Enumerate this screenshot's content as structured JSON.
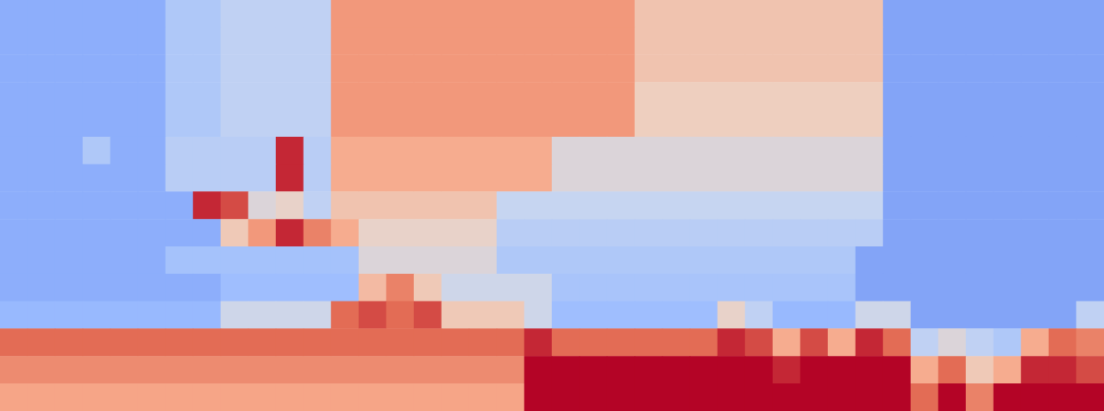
{
  "chart_data": {
    "type": "heatmap",
    "tick_labels": false,
    "zlim": [
      0,
      1
    ],
    "cells": [
      [
        0.25,
        0.25,
        0.25,
        0.25,
        0.25,
        0.25,
        0.35,
        0.35,
        0.4,
        0.4,
        0.4,
        0.4,
        0.75,
        0.75,
        0.75,
        0.75,
        0.75,
        0.75,
        0.75,
        0.75,
        0.75,
        0.75,
        0.75,
        0.62,
        0.62,
        0.62,
        0.62,
        0.62,
        0.62,
        0.62,
        0.62,
        0.62,
        0.22,
        0.22,
        0.22,
        0.22,
        0.22,
        0.22,
        0.22,
        0.22
      ],
      [
        0.25,
        0.25,
        0.25,
        0.25,
        0.25,
        0.25,
        0.35,
        0.35,
        0.4,
        0.4,
        0.4,
        0.4,
        0.75,
        0.75,
        0.75,
        0.75,
        0.75,
        0.75,
        0.75,
        0.75,
        0.75,
        0.75,
        0.75,
        0.62,
        0.62,
        0.62,
        0.62,
        0.62,
        0.62,
        0.62,
        0.62,
        0.62,
        0.22,
        0.22,
        0.22,
        0.22,
        0.22,
        0.22,
        0.22,
        0.22
      ],
      [
        0.25,
        0.25,
        0.25,
        0.25,
        0.25,
        0.25,
        0.35,
        0.35,
        0.4,
        0.4,
        0.4,
        0.4,
        0.75,
        0.75,
        0.75,
        0.75,
        0.75,
        0.75,
        0.75,
        0.75,
        0.75,
        0.75,
        0.75,
        0.62,
        0.62,
        0.62,
        0.62,
        0.62,
        0.62,
        0.62,
        0.62,
        0.62,
        0.22,
        0.22,
        0.22,
        0.22,
        0.22,
        0.22,
        0.22,
        0.22
      ],
      [
        0.25,
        0.25,
        0.25,
        0.25,
        0.25,
        0.25,
        0.35,
        0.35,
        0.4,
        0.4,
        0.4,
        0.4,
        0.75,
        0.75,
        0.75,
        0.75,
        0.75,
        0.75,
        0.75,
        0.75,
        0.75,
        0.75,
        0.75,
        0.58,
        0.58,
        0.58,
        0.58,
        0.58,
        0.58,
        0.58,
        0.58,
        0.58,
        0.22,
        0.22,
        0.22,
        0.22,
        0.22,
        0.22,
        0.22,
        0.22
      ],
      [
        0.25,
        0.25,
        0.25,
        0.25,
        0.25,
        0.25,
        0.35,
        0.35,
        0.4,
        0.4,
        0.4,
        0.4,
        0.75,
        0.75,
        0.75,
        0.75,
        0.75,
        0.75,
        0.75,
        0.75,
        0.75,
        0.75,
        0.75,
        0.58,
        0.58,
        0.58,
        0.58,
        0.58,
        0.58,
        0.58,
        0.58,
        0.58,
        0.22,
        0.22,
        0.22,
        0.22,
        0.22,
        0.22,
        0.22,
        0.22
      ],
      [
        0.25,
        0.25,
        0.25,
        0.35,
        0.25,
        0.25,
        0.38,
        0.38,
        0.38,
        0.38,
        0.95,
        0.38,
        0.7,
        0.7,
        0.7,
        0.7,
        0.7,
        0.7,
        0.7,
        0.7,
        0.5,
        0.5,
        0.5,
        0.5,
        0.5,
        0.5,
        0.5,
        0.5,
        0.5,
        0.5,
        0.5,
        0.5,
        0.22,
        0.22,
        0.22,
        0.22,
        0.22,
        0.22,
        0.22,
        0.22
      ],
      [
        0.25,
        0.25,
        0.25,
        0.25,
        0.25,
        0.25,
        0.38,
        0.38,
        0.38,
        0.38,
        0.95,
        0.38,
        0.7,
        0.7,
        0.7,
        0.7,
        0.7,
        0.7,
        0.7,
        0.7,
        0.5,
        0.5,
        0.5,
        0.5,
        0.5,
        0.5,
        0.5,
        0.5,
        0.5,
        0.5,
        0.5,
        0.5,
        0.22,
        0.22,
        0.22,
        0.22,
        0.22,
        0.22,
        0.22,
        0.22
      ],
      [
        0.25,
        0.25,
        0.25,
        0.25,
        0.25,
        0.25,
        0.25,
        0.95,
        0.9,
        0.5,
        0.55,
        0.4,
        0.62,
        0.62,
        0.62,
        0.62,
        0.62,
        0.62,
        0.42,
        0.42,
        0.42,
        0.42,
        0.42,
        0.42,
        0.42,
        0.42,
        0.42,
        0.42,
        0.42,
        0.42,
        0.42,
        0.42,
        0.22,
        0.22,
        0.22,
        0.22,
        0.22,
        0.22,
        0.22,
        0.22
      ],
      [
        0.25,
        0.25,
        0.25,
        0.25,
        0.25,
        0.25,
        0.25,
        0.25,
        0.6,
        0.75,
        0.95,
        0.8,
        0.7,
        0.55,
        0.55,
        0.55,
        0.55,
        0.55,
        0.38,
        0.38,
        0.38,
        0.38,
        0.38,
        0.38,
        0.38,
        0.38,
        0.38,
        0.38,
        0.38,
        0.38,
        0.38,
        0.38,
        0.22,
        0.22,
        0.22,
        0.22,
        0.22,
        0.22,
        0.22,
        0.22
      ],
      [
        0.25,
        0.25,
        0.25,
        0.25,
        0.25,
        0.25,
        0.32,
        0.32,
        0.32,
        0.32,
        0.32,
        0.32,
        0.32,
        0.5,
        0.5,
        0.5,
        0.5,
        0.5,
        0.35,
        0.35,
        0.35,
        0.35,
        0.35,
        0.35,
        0.35,
        0.35,
        0.35,
        0.35,
        0.35,
        0.35,
        0.35,
        0.22,
        0.22,
        0.22,
        0.22,
        0.22,
        0.22,
        0.22,
        0.22,
        0.22
      ],
      [
        0.25,
        0.25,
        0.25,
        0.25,
        0.25,
        0.25,
        0.25,
        0.25,
        0.3,
        0.3,
        0.3,
        0.3,
        0.3,
        0.65,
        0.8,
        0.6,
        0.45,
        0.45,
        0.45,
        0.45,
        0.33,
        0.33,
        0.33,
        0.33,
        0.33,
        0.33,
        0.33,
        0.33,
        0.33,
        0.33,
        0.33,
        0.22,
        0.22,
        0.22,
        0.22,
        0.22,
        0.22,
        0.22,
        0.22,
        0.22
      ],
      [
        0.28,
        0.28,
        0.28,
        0.28,
        0.28,
        0.28,
        0.28,
        0.28,
        0.45,
        0.45,
        0.45,
        0.45,
        0.85,
        0.9,
        0.85,
        0.9,
        0.6,
        0.6,
        0.6,
        0.45,
        0.3,
        0.3,
        0.3,
        0.3,
        0.3,
        0.3,
        0.55,
        0.4,
        0.28,
        0.28,
        0.28,
        0.45,
        0.45,
        0.22,
        0.22,
        0.22,
        0.22,
        0.22,
        0.22,
        0.4
      ],
      [
        0.85,
        0.85,
        0.85,
        0.85,
        0.85,
        0.85,
        0.85,
        0.85,
        0.85,
        0.85,
        0.85,
        0.85,
        0.85,
        0.85,
        0.85,
        0.85,
        0.85,
        0.85,
        0.85,
        0.95,
        0.85,
        0.85,
        0.85,
        0.85,
        0.85,
        0.85,
        0.95,
        0.9,
        0.7,
        0.9,
        0.7,
        0.95,
        0.85,
        0.4,
        0.5,
        0.4,
        0.35,
        0.7,
        0.85,
        0.8
      ],
      [
        0.78,
        0.78,
        0.78,
        0.78,
        0.78,
        0.78,
        0.78,
        0.78,
        0.78,
        0.78,
        0.78,
        0.78,
        0.78,
        0.78,
        0.78,
        0.78,
        0.78,
        0.78,
        0.78,
        1,
        1,
        1,
        1,
        1,
        1,
        1,
        1,
        1,
        0.95,
        1,
        1,
        1,
        1,
        0.7,
        0.85,
        0.6,
        0.7,
        0.95,
        0.95,
        0.9
      ],
      [
        0.72,
        0.72,
        0.72,
        0.72,
        0.72,
        0.72,
        0.72,
        0.72,
        0.72,
        0.72,
        0.72,
        0.72,
        0.72,
        0.72,
        0.72,
        0.72,
        0.72,
        0.72,
        0.72,
        1,
        1,
        1,
        1,
        1,
        1,
        1,
        1,
        1,
        1,
        1,
        1,
        1,
        1,
        0.85,
        1,
        0.8,
        1,
        1,
        1,
        1
      ]
    ]
  }
}
